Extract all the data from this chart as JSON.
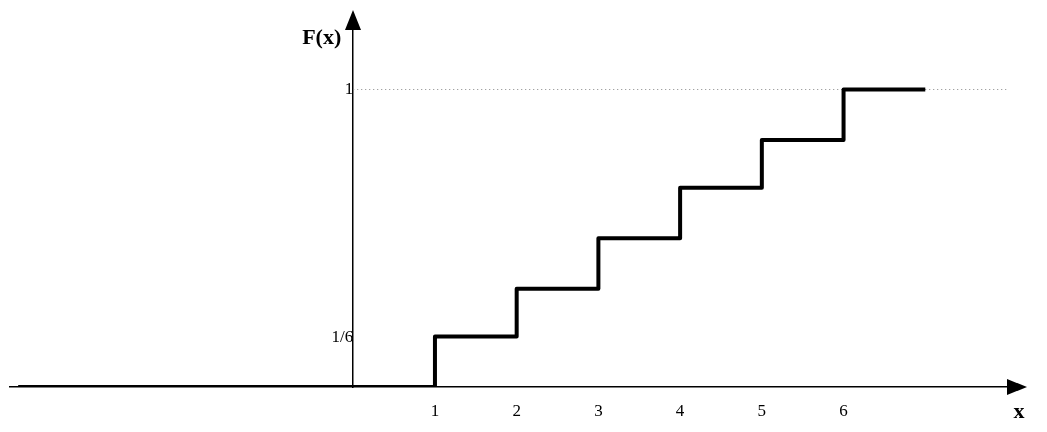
{
  "chart_data": {
    "type": "step",
    "xlabel": "x",
    "ylabel": "F(x)",
    "x": [
      -4.1,
      1,
      2,
      3,
      4,
      5,
      6,
      7
    ],
    "series": [
      {
        "color": "#000000",
        "values": [
          0,
          0.17,
          0.33,
          0.5,
          0.67,
          0.83,
          1,
          1
        ]
      }
    ],
    "xlim": [
      -4.2,
      8
    ],
    "ylim": [
      0,
      1.2
    ],
    "xticks": [
      1,
      2,
      3,
      4,
      5,
      6
    ],
    "yticks": [
      {
        "value": 0.1667,
        "label": "1/6"
      },
      1
    ],
    "ref_lines": [
      {
        "axis": "y",
        "value": 1,
        "color": "#888888",
        "line_style": "dotted"
      }
    ],
    "grid": false,
    "legend": false
  }
}
